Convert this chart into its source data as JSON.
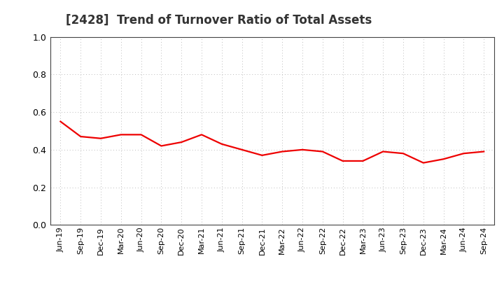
{
  "title": "[2428]  Trend of Turnover Ratio of Total Assets",
  "x_labels": [
    "Jun-19",
    "Sep-19",
    "Dec-19",
    "Mar-20",
    "Jun-20",
    "Sep-20",
    "Dec-20",
    "Mar-21",
    "Jun-21",
    "Sep-21",
    "Dec-21",
    "Mar-22",
    "Jun-22",
    "Sep-22",
    "Dec-22",
    "Mar-23",
    "Jun-23",
    "Sep-23",
    "Dec-23",
    "Mar-24",
    "Jun-24",
    "Sep-24"
  ],
  "y_values": [
    0.55,
    0.47,
    0.46,
    0.48,
    0.48,
    0.42,
    0.44,
    0.48,
    0.43,
    0.4,
    0.37,
    0.39,
    0.4,
    0.39,
    0.34,
    0.34,
    0.39,
    0.38,
    0.33,
    0.35,
    0.38,
    0.39
  ],
  "line_color": "#ee0000",
  "line_width": 1.6,
  "ylim": [
    0.0,
    1.0
  ],
  "yticks": [
    0.0,
    0.2,
    0.4,
    0.6,
    0.8,
    1.0
  ],
  "grid_color": "#bbbbbb",
  "bg_color": "#ffffff",
  "title_fontsize": 12,
  "tick_fontsize": 8,
  "title_color": "#333333"
}
